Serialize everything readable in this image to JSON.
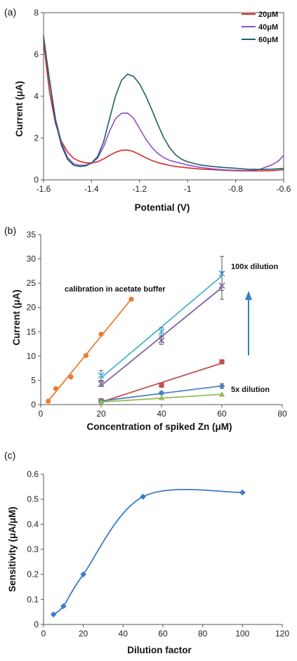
{
  "chart_data": [
    {
      "panel": "(a)",
      "type": "line",
      "xlabel": "Potential (V)",
      "ylabel": "Current (μA)",
      "xlim": [
        -1.6,
        -0.6
      ],
      "ylim": [
        0,
        8
      ],
      "xticks": [
        "-1.6",
        "-1.4",
        "-1.2",
        "-1",
        "-0.8",
        "-0.6"
      ],
      "yticks": [
        "0",
        "2",
        "4",
        "6",
        "8"
      ],
      "legend_position": "top-right",
      "series": [
        {
          "name": "20μM",
          "color": "#d42a2a",
          "x": [
            -1.6,
            -1.575,
            -1.55,
            -1.525,
            -1.5,
            -1.475,
            -1.45,
            -1.425,
            -1.4,
            -1.375,
            -1.35,
            -1.325,
            -1.3,
            -1.275,
            -1.25,
            -1.225,
            -1.2,
            -1.175,
            -1.15,
            -1.125,
            -1.1,
            -1.075,
            -1.05,
            -1.025,
            -1.0,
            -0.95,
            -0.9,
            -0.85,
            -0.8,
            -0.75,
            -0.7,
            -0.65,
            -0.6
          ],
          "y": [
            6.6,
            4.2,
            2.7,
            1.85,
            1.35,
            1.05,
            0.9,
            0.82,
            0.8,
            0.85,
            0.98,
            1.15,
            1.3,
            1.4,
            1.42,
            1.35,
            1.22,
            1.08,
            0.95,
            0.85,
            0.77,
            0.7,
            0.64,
            0.6,
            0.56,
            0.5,
            0.47,
            0.44,
            0.42,
            0.42,
            0.43,
            0.45,
            0.5
          ]
        },
        {
          "name": "40μM",
          "color": "#8e4fc2",
          "x": [
            -1.6,
            -1.575,
            -1.55,
            -1.525,
            -1.5,
            -1.475,
            -1.45,
            -1.425,
            -1.4,
            -1.375,
            -1.35,
            -1.325,
            -1.3,
            -1.275,
            -1.25,
            -1.225,
            -1.2,
            -1.175,
            -1.15,
            -1.125,
            -1.1,
            -1.075,
            -1.05,
            -1.025,
            -1.0,
            -0.95,
            -0.9,
            -0.85,
            -0.8,
            -0.75,
            -0.7,
            -0.65,
            -0.62,
            -0.6
          ],
          "y": [
            6.8,
            4.8,
            2.9,
            1.75,
            1.05,
            0.75,
            0.68,
            0.7,
            0.8,
            1.05,
            1.6,
            2.35,
            2.95,
            3.2,
            3.2,
            2.95,
            2.45,
            1.95,
            1.55,
            1.25,
            1.05,
            0.92,
            0.85,
            0.79,
            0.72,
            0.62,
            0.55,
            0.5,
            0.47,
            0.45,
            0.5,
            0.7,
            0.9,
            1.15
          ]
        },
        {
          "name": "60μM",
          "color": "#1d5f6a",
          "x": [
            -1.6,
            -1.575,
            -1.55,
            -1.525,
            -1.5,
            -1.475,
            -1.45,
            -1.425,
            -1.4,
            -1.375,
            -1.35,
            -1.325,
            -1.3,
            -1.275,
            -1.25,
            -1.225,
            -1.2,
            -1.175,
            -1.15,
            -1.125,
            -1.1,
            -1.075,
            -1.05,
            -1.025,
            -1.0,
            -0.95,
            -0.9,
            -0.85,
            -0.8,
            -0.75,
            -0.7,
            -0.65,
            -0.6
          ],
          "y": [
            6.9,
            4.7,
            2.8,
            1.65,
            1.0,
            0.72,
            0.65,
            0.67,
            0.8,
            1.1,
            1.8,
            2.9,
            4.0,
            4.75,
            5.05,
            4.95,
            4.6,
            4.05,
            3.4,
            2.7,
            2.05,
            1.55,
            1.2,
            0.98,
            0.85,
            0.7,
            0.62,
            0.57,
            0.54,
            0.5,
            0.5,
            0.52,
            0.56
          ]
        }
      ]
    },
    {
      "panel": "(b)",
      "type": "scatter",
      "xlabel": "Concentration  of spiked  Zn (μM)",
      "ylabel": "Current (μA)",
      "xlim": [
        0,
        80
      ],
      "ylim": [
        0,
        35
      ],
      "xticks": [
        "0",
        "20",
        "40",
        "60",
        "80"
      ],
      "yticks": [
        "0",
        "5",
        "10",
        "15",
        "20",
        "25",
        "30",
        "35"
      ],
      "annotations": [
        "calibration in acetate buffer",
        "100x dilution",
        "5x dilution"
      ],
      "series": [
        {
          "color": "#ec7c30",
          "marker": "circle",
          "x": [
            2.5,
            5,
            10,
            15,
            20,
            30
          ],
          "y": [
            0.7,
            3.3,
            5.7,
            10.1,
            14.5,
            21.7
          ]
        },
        {
          "color": "#4bb2d3",
          "marker": "x-star",
          "x": [
            20,
            40,
            60
          ],
          "y": [
            6.0,
            15.0,
            27.0
          ],
          "err": [
            1.0,
            0.8,
            3.5
          ]
        },
        {
          "color": "#8064a2",
          "marker": "x",
          "x": [
            20,
            40,
            60
          ],
          "y": [
            4.3,
            13.2,
            24.5
          ],
          "err": [
            0.6,
            0.8,
            2.8
          ]
        },
        {
          "color": "#c0504d",
          "marker": "square",
          "x": [
            20,
            40,
            60
          ],
          "y": [
            0.8,
            4.0,
            8.8
          ]
        },
        {
          "color": "#4f81bd",
          "marker": "diamond",
          "x": [
            20,
            40,
            60
          ],
          "y": [
            0.7,
            2.4,
            3.8
          ],
          "err": [
            0.0,
            0.3,
            0.5
          ]
        },
        {
          "color": "#9bbb59",
          "marker": "triangle",
          "x": [
            20,
            40,
            60
          ],
          "y": [
            0.5,
            1.4,
            2.1
          ]
        }
      ]
    },
    {
      "panel": "(c)",
      "type": "line",
      "xlabel": "Dilution factor",
      "ylabel": "Sensitivity (μA/μM)",
      "xlim": [
        0,
        120
      ],
      "ylim": [
        0,
        0.6
      ],
      "xticks": [
        "0",
        "20",
        "40",
        "60",
        "80",
        "100",
        "120"
      ],
      "yticks": [
        "0",
        "0.1",
        "0.2",
        "0.3",
        "0.4",
        "0.5",
        "0.6"
      ],
      "series": [
        {
          "color": "#3d7bc8",
          "marker": "diamond",
          "x": [
            5,
            10,
            20,
            50,
            100
          ],
          "y": [
            0.04,
            0.073,
            0.2,
            0.51,
            0.527
          ]
        }
      ]
    }
  ]
}
